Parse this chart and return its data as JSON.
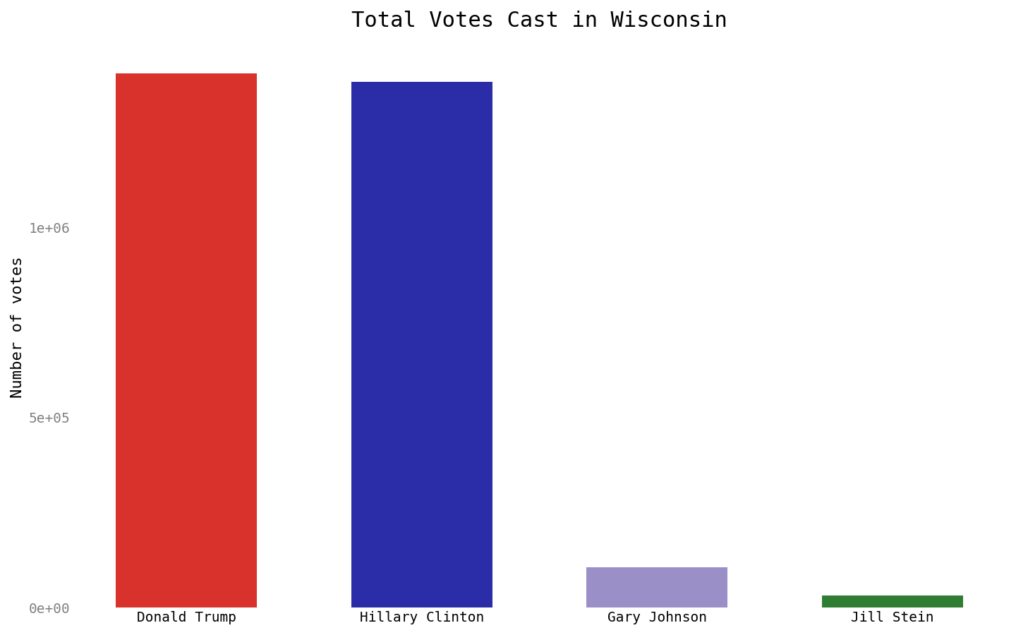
{
  "candidates": [
    "Donald Trump",
    "Hillary Clinton",
    "Gary Johnson",
    "Jill Stein"
  ],
  "votes": [
    1405284,
    1382536,
    106674,
    31072
  ],
  "colors": [
    "#d9312b",
    "#2b2da8",
    "#9b8fc7",
    "#2e7d32"
  ],
  "title": "Total Votes Cast in Wisconsin",
  "ylabel": "Number of votes",
  "title_fontsize": 22,
  "label_fontsize": 16,
  "tick_fontsize": 14,
  "tick_color": "#808080",
  "yticks": [
    0,
    500000,
    1000000
  ],
  "ytick_labels": [
    "0e+00",
    "5e+05",
    "1e+06"
  ],
  "background_color": "#ffffff",
  "bar_width": 0.6
}
